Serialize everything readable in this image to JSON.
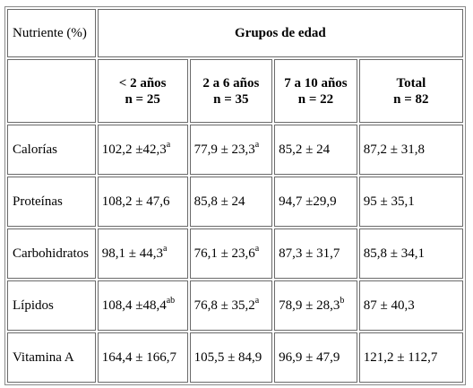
{
  "header": {
    "nutrient_label": "Nutriente (%)",
    "group_title": "Grupos de edad",
    "columns": [
      {
        "label": "< 2 años",
        "n": "n = 25"
      },
      {
        "label": "2 a 6 años",
        "n": "n = 35"
      },
      {
        "label": "7 a 10 años",
        "n": "n = 22"
      },
      {
        "label": "Total",
        "n": "n = 82"
      }
    ]
  },
  "rows": [
    {
      "name": "Calorías",
      "cells": [
        {
          "value": "102,2 ±42,3",
          "sup": "a"
        },
        {
          "value": "77,9 ± 23,3",
          "sup": "a"
        },
        {
          "value": "85,2 ± 24",
          "sup": ""
        },
        {
          "value": "87,2 ± 31,8",
          "sup": ""
        }
      ]
    },
    {
      "name": "Proteínas",
      "cells": [
        {
          "value": "108,2 ± 47,6",
          "sup": ""
        },
        {
          "value": "85,8 ± 24",
          "sup": ""
        },
        {
          "value": "94,7 ±29,9",
          "sup": ""
        },
        {
          "value": "95 ± 35,1",
          "sup": ""
        }
      ]
    },
    {
      "name": "Carbohidratos",
      "cells": [
        {
          "value": "98,1 ± 44,3",
          "sup": "a"
        },
        {
          "value": "76,1 ± 23,6",
          "sup": "a"
        },
        {
          "value": "87,3 ± 31,7",
          "sup": ""
        },
        {
          "value": "85,8 ± 34,1",
          "sup": ""
        }
      ]
    },
    {
      "name": "Lípidos",
      "cells": [
        {
          "value": "108,4 ±48,4",
          "sup": "ab"
        },
        {
          "value": "76,8 ± 35,2",
          "sup": "a"
        },
        {
          "value": "78,9 ± 28,3",
          "sup": "b"
        },
        {
          "value": "87 ± 40,3",
          "sup": ""
        }
      ]
    },
    {
      "name": "Vitamina A",
      "cells": [
        {
          "value": "164,4 ± 166,7",
          "sup": ""
        },
        {
          "value": "105,5 ± 84,9",
          "sup": ""
        },
        {
          "value": "96,9 ± 47,9",
          "sup": ""
        },
        {
          "value": "121,2 ± 112,7",
          "sup": ""
        }
      ]
    }
  ]
}
